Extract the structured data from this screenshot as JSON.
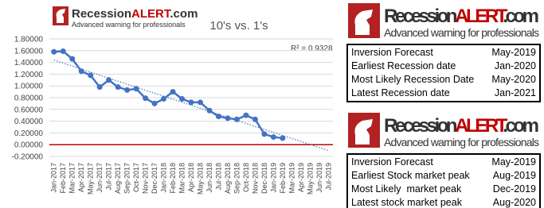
{
  "chart_data": {
    "type": "line",
    "title": "10's vs. 1's",
    "categories": [
      "Jan-2017",
      "Feb-2017",
      "Mar-2017",
      "Apr-2017",
      "May-2017",
      "Jun-2017",
      "Jul-2017",
      "Aug-2017",
      "Sep-2017",
      "Oct-2017",
      "Nov-2017",
      "Dec-2017",
      "Jan-2018",
      "Feb-2018",
      "Mar-2018",
      "Apr-2018",
      "May-2018",
      "Jun-2018",
      "Jul-2018",
      "Aug-2018",
      "Sep-2018",
      "Oct-2018",
      "Nov-2018",
      "Dec-2018",
      "Jan-2019",
      "Feb-2019",
      "Mar-2019",
      "Apr-2019",
      "May-2019",
      "Jun-2019",
      "Jul-2019"
    ],
    "values": [
      1.58,
      1.59,
      1.46,
      1.25,
      1.18,
      0.98,
      1.1,
      0.98,
      0.93,
      0.95,
      0.79,
      0.7,
      0.78,
      0.9,
      0.78,
      0.72,
      0.72,
      0.58,
      0.48,
      0.45,
      0.43,
      0.5,
      0.43,
      0.18,
      0.13,
      0.11,
      null,
      null,
      null,
      null,
      null
    ],
    "color": "#4472c4",
    "trendline": {
      "from": 1.44,
      "to": -0.1,
      "color": "#4472c4"
    },
    "annotation": "R² = 0.9328",
    "ylim": [
      -0.2,
      1.8
    ],
    "yticks": [
      {
        "value": -0.2,
        "label": "-0.20000"
      },
      {
        "value": 0,
        "label": "0.00000"
      },
      {
        "value": 0.2,
        "label": "0.20000"
      },
      {
        "value": 0.4,
        "label": "0.40000"
      },
      {
        "value": 0.6,
        "label": "0.60000"
      },
      {
        "value": 0.8,
        "label": "0.80000"
      },
      {
        "value": 1,
        "label": "1.00000"
      },
      {
        "value": 1.2,
        "label": "1.20000"
      },
      {
        "value": 1.4,
        "label": "1.40000"
      },
      {
        "value": 1.6,
        "label": "1.60000"
      },
      {
        "value": 1.8,
        "label": "1.80000"
      }
    ],
    "grid": true,
    "zero_line_color": "#c00000"
  },
  "brand": {
    "name": "Recession",
    "highlight": "ALERT",
    "suffix": ".com",
    "tagline": "Advanced warning for professionals"
  },
  "info_boxes": [
    {
      "rows": [
        [
          "Inversion Forecast",
          "May-2019"
        ],
        [
          "Earliest Recession date",
          "Jan-2020"
        ],
        [
          "Most Likely Recession Date",
          "May-2020"
        ],
        [
          "Latest Recession date",
          "Jan-2021"
        ]
      ]
    },
    {
      "rows": [
        [
          "Inversion Forecast",
          "May-2019"
        ],
        [
          "Earliest Stock market peak",
          "Aug-2019"
        ],
        [
          "Most Likely  market peak",
          "Dec-2019"
        ],
        [
          "Latest stock market peak",
          "Aug-2020"
        ]
      ]
    }
  ]
}
